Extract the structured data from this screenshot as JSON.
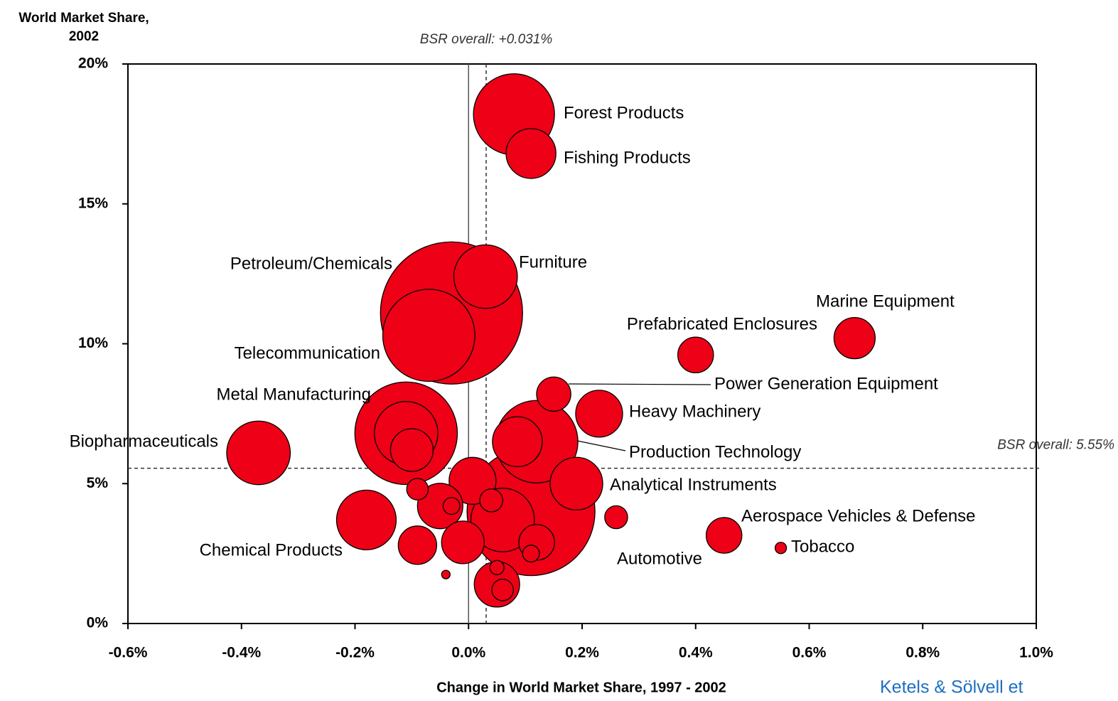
{
  "chart_data": {
    "type": "scatter",
    "y_label": [
      "World Market Share,",
      "2002"
    ],
    "x_label": "Change in World Market Share, 1997 - 2002",
    "source": "Ketels & Sölvell et",
    "color": "#ee0016",
    "labels": [
      "Forest Products",
      "Fishing Products",
      "Petroleum/Chemicals",
      "Furniture",
      "Telecommunication",
      "Marine Equipment",
      "Prefabricated Enclosures",
      "Power Generation Equipment",
      "Heavy Machinery",
      "Production Technology",
      "Metal Manufacturing",
      "Biopharmaceuticals",
      "Analytical Instruments",
      "Automotive",
      "Chemical Products",
      "Aerospace Vehicles & Defense",
      "Tobacco",
      null,
      null,
      null,
      null,
      null,
      null,
      null,
      null,
      null,
      null,
      null,
      null,
      null,
      null,
      null,
      null,
      null,
      null
    ],
    "x": [
      0.08,
      0.11,
      -0.03,
      0.03,
      -0.07,
      0.68,
      0.4,
      0.15,
      0.23,
      0.12,
      -0.11,
      -0.37,
      0.19,
      0.11,
      -0.18,
      0.45,
      0.55,
      0.086,
      -0.11,
      -0.1,
      0.007,
      -0.09,
      -0.05,
      -0.03,
      0.04,
      0.06,
      -0.09,
      -0.01,
      0.26,
      0.12,
      0.11,
      -0.04,
      0.05,
      0.06,
      0.05
    ],
    "values": [
      18.2,
      16.8,
      11.1,
      12.4,
      10.3,
      10.2,
      9.6,
      8.2,
      7.5,
      6.5,
      6.8,
      6.1,
      5.0,
      4.0,
      3.7,
      3.15,
      2.7,
      6.5,
      6.8,
      6.2,
      5.1,
      4.8,
      4.2,
      4.2,
      4.4,
      3.7,
      2.8,
      2.9,
      3.8,
      2.9,
      2.5,
      1.75,
      1.4,
      1.2,
      2.0
    ],
    "sizes": [
      32.5,
      12.3,
      100,
      20,
      42,
      8.4,
      6.3,
      5.8,
      10.9,
      33.6,
      52,
      20,
      13.7,
      81,
      17.6,
      6.3,
      0.64,
      12.3,
      20,
      9,
      10.9,
      2.3,
      10.2,
      1.4,
      2.6,
      20,
      7.3,
      9,
      2.6,
      6.3,
      1.4,
      0.36,
      10.2,
      2.3,
      1
    ],
    "xlim": [
      -0.6,
      1.0
    ],
    "ylim": [
      0,
      20
    ],
    "xticks": [
      {
        "value": -0.6,
        "label": "-0.6%"
      },
      {
        "value": -0.4,
        "label": "-0.4%"
      },
      {
        "value": -0.2,
        "label": "-0.2%"
      },
      {
        "value": 0.0,
        "label": "0.0%"
      },
      {
        "value": 0.2,
        "label": "0.2%"
      },
      {
        "value": 0.4,
        "label": "0.4%"
      },
      {
        "value": 0.6,
        "label": "0.6%"
      },
      {
        "value": 0.8,
        "label": "0.8%"
      },
      {
        "value": 1.0,
        "label": "1.0%"
      }
    ],
    "yticks": [
      {
        "value": 0,
        "label": "0%"
      },
      {
        "value": 5,
        "label": "5%"
      },
      {
        "value": 10,
        "label": "10%"
      },
      {
        "value": 15,
        "label": "15%"
      },
      {
        "value": 20,
        "label": "20%"
      }
    ],
    "reference_lines": [
      {
        "axis": "x",
        "value": 0.031,
        "label": "BSR overall: +0.031%"
      },
      {
        "axis": "y",
        "value": 5.55,
        "label": "BSR overall: 5.55%"
      }
    ]
  }
}
